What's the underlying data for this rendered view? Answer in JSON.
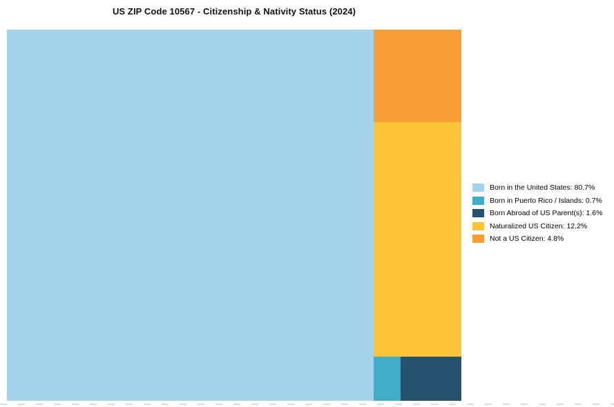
{
  "page": {
    "background": "#ffffff"
  },
  "chart_data": {
    "type": "treemap",
    "title": "US ZIP Code 10567 - Citizenship & Nativity Status (2024)",
    "legend_position": "right",
    "total": 100,
    "segments": [
      {
        "id": "born_us",
        "label": "Born in the United States",
        "value": 80.7,
        "color": "#a5d3e9",
        "legend_label": "Born in the United States: 80.7%"
      },
      {
        "id": "born_pr",
        "label": "Born in Puerto Rico / Islands",
        "value": 0.7,
        "color": "#41adc9",
        "legend_label": "Born in Puerto Rico / Islands: 0.7%"
      },
      {
        "id": "born_abroad",
        "label": "Born Abroad of US Parent(s)",
        "value": 1.6,
        "color": "#27526d",
        "legend_label": "Born Abroad of US Parent(s): 1.6%"
      },
      {
        "id": "naturalized",
        "label": "Naturalized US Citizen",
        "value": 12.2,
        "color": "#fdc53a",
        "legend_label": "Naturalized US Citizen: 12.2%"
      },
      {
        "id": "not_citizen",
        "label": "Not a US Citizen",
        "value": 4.8,
        "color": "#f99d36",
        "legend_label": "Not a US Citizen: 4.8%"
      }
    ]
  }
}
